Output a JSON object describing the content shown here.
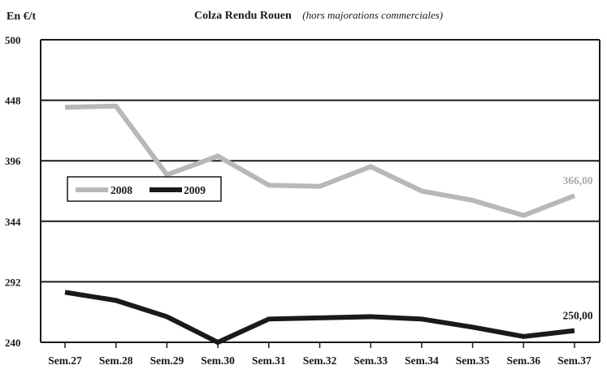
{
  "chart_data": {
    "type": "line",
    "title": "Colza Rendu Rouen",
    "subtitle": "(hors majorations commerciales)",
    "unit_label": "En €/t",
    "xlabel": "",
    "ylabel": "",
    "categories": [
      "Sem.27",
      "Sem.28",
      "Sem.29",
      "Sem.30",
      "Sem.31",
      "Sem.32",
      "Sem.33",
      "Sem.34",
      "Sem.35",
      "Sem.36",
      "Sem.37"
    ],
    "yticks": [
      240,
      292,
      344,
      396,
      448,
      500
    ],
    "ylim": [
      240,
      500
    ],
    "grid": "horizontal",
    "legend_position": "middle-left",
    "series": [
      {
        "name": "2008",
        "color": "#b8b8b8",
        "values": [
          442,
          443,
          384,
          400,
          375,
          374,
          391,
          370,
          362,
          349,
          366
        ],
        "end_label": "366,00",
        "end_label_color": "#aaaaaa"
      },
      {
        "name": "2009",
        "color": "#1a1a1a",
        "values": [
          283,
          276,
          262,
          240,
          260,
          261,
          262,
          260,
          253,
          245,
          250
        ],
        "end_label": "250,00",
        "end_label_color": "#1a1a1a"
      }
    ]
  }
}
